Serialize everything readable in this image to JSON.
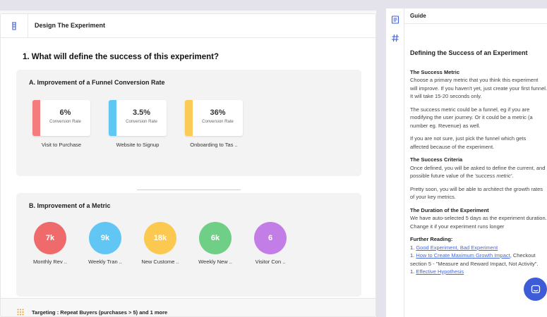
{
  "header": {
    "title": "Design The Experiment",
    "icon": "flask-icon"
  },
  "question": "1. What will define the success of this experiment?",
  "section_a": {
    "title": "A. Improvement of a Funnel Conversion Rate",
    "items": [
      {
        "value": "6%",
        "sub": "Conversion Rate",
        "label": "Visit to Purchase",
        "color": "#f47c7c"
      },
      {
        "value": "3.5%",
        "sub": "Conversion Rate",
        "label": "Website to Signup",
        "color": "#5ec8f2"
      },
      {
        "value": "36%",
        "sub": "Conversion Rate",
        "label": "Onboarding to Tas ..",
        "color": "#fbcb57"
      }
    ]
  },
  "section_b": {
    "title": "B. Improvement of a Metric",
    "items": [
      {
        "value": "7k",
        "label": "Monthly Rev ..",
        "color": "#ef6b6b"
      },
      {
        "value": "9k",
        "label": "Weekly Tran ..",
        "color": "#62c6f4"
      },
      {
        "value": "18k",
        "label": "New Custome ..",
        "color": "#fbc94f"
      },
      {
        "value": "6k",
        "label": "Weekly New ..",
        "color": "#6fcf87"
      },
      {
        "value": "6",
        "label": "Visitor Con ..",
        "color": "#c27de6"
      }
    ]
  },
  "targeting": {
    "text": "Targeting : Repeat Buyers (purchases > 5) and 1 more",
    "icon": "grid-dots-icon"
  },
  "side_strip": {
    "icons": [
      "document-icon",
      "hash-icon"
    ]
  },
  "guide": {
    "title": "Guide",
    "heading": "Defining the Success of an Experiment",
    "metric_title": "The Success Metric",
    "metric_p1": "Choose a primary metric that you think this experiment\nwill improve. If you haven't yet, just create your first funnel.\nIt will take 15-20 seconds only.",
    "metric_p2": "The success metric could be a funnel, eg if you are\nmodifying the user journey. Or it could be a metric (a\nnumber eg. Revenue) as well.",
    "metric_p3": "If you are not sure, just pick the funnel which gets\naffected because of the experiment.",
    "criteria_title": "The Success Criteria",
    "criteria_p1_a": "Once defined, you will be asked to define the current, and\npossible future value of the ",
    "criteria_p1_em": "'success metric'",
    "criteria_p1_b": ".",
    "criteria_p2": "Pretty soon, you will be able to architect the growth rates\nof your key metrics.",
    "duration_title": "The Duration of the Experiment",
    "duration_p1": "We have auto-selected 5 days as the experiment duration.\nChange it if your experiment runs longer",
    "further_title": "Further Reading:",
    "links": [
      {
        "prefix": "1. ",
        "text": "Good Experiment, Bad Experiment",
        "suffix": ""
      },
      {
        "prefix": "1. ",
        "text": "How to Create Maximum Growth Impact",
        "suffix": ", Checkout"
      },
      {
        "prefix": "",
        "text": "",
        "suffix": "section 5 - \"Measure and Reward Impact, Not Activity\"."
      },
      {
        "prefix": "1. ",
        "text": "Effective Hypothesis",
        "suffix": ""
      }
    ]
  },
  "chat": {
    "icon": "chat-icon"
  }
}
